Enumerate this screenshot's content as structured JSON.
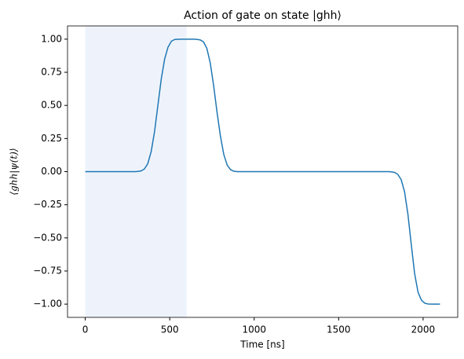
{
  "chart_data": {
    "type": "line",
    "title": "Action of gate on state |ghh⟩",
    "x_label": "Time [ns]",
    "y_label": "⟨ghh|ψ(t)⟩",
    "x": [
      0,
      300,
      330,
      350,
      370,
      390,
      410,
      430,
      450,
      470,
      490,
      510,
      530,
      560,
      650,
      680,
      700,
      720,
      740,
      760,
      780,
      800,
      820,
      840,
      860,
      880,
      900,
      1800,
      1830,
      1850,
      1870,
      1890,
      1910,
      1930,
      1950,
      1970,
      1990,
      2010,
      2030,
      2060,
      2100
    ],
    "series": [
      {
        "color": "#1f77b4",
        "values": [
          0,
          0,
          0.005,
          0.02,
          0.06,
          0.15,
          0.3,
          0.5,
          0.7,
          0.85,
          0.94,
          0.985,
          0.998,
          1,
          1,
          0.995,
          0.98,
          0.93,
          0.82,
          0.65,
          0.45,
          0.27,
          0.13,
          0.05,
          0.015,
          0.003,
          0,
          0,
          -0.005,
          -0.02,
          -0.06,
          -0.15,
          -0.32,
          -0.55,
          -0.77,
          -0.91,
          -0.97,
          -0.993,
          -0.999,
          -1,
          -1
        ]
      }
    ],
    "highlight": {
      "xrange": [
        0,
        600
      ],
      "color": "#eef3fb"
    },
    "xlim": [
      -105,
      2205
    ],
    "ylim": [
      -1.1,
      1.1
    ],
    "xticks": [
      0,
      500,
      1000,
      1500,
      2000
    ],
    "yticks": [
      {
        "value": -1,
        "label": "−1.00"
      },
      {
        "value": -0.75,
        "label": "−0.75"
      },
      {
        "value": -0.5,
        "label": "−0.50"
      },
      {
        "value": -0.25,
        "label": "−0.25"
      },
      {
        "value": 0,
        "label": "0.00"
      },
      {
        "value": 0.25,
        "label": "0.25"
      },
      {
        "value": 0.5,
        "label": "0.50"
      },
      {
        "value": 0.75,
        "label": "0.75"
      },
      {
        "value": 1,
        "label": "1.00"
      }
    ],
    "grid": false
  }
}
